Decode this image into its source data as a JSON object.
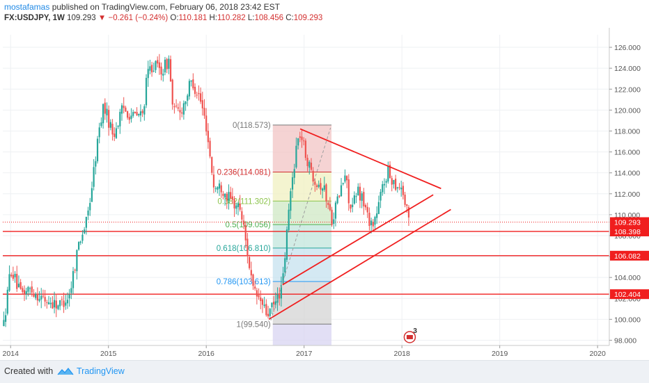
{
  "header": {
    "author": "mostafamas",
    "published": " published on TradingView.com, February 06, 2018 23:42 EST",
    "symbol": "FX:USDJPY, 1W",
    "last": "109.293",
    "arrow": "▼",
    "change": "−0.261 (−0.24%)",
    "o_label": "O:",
    "o_value": "110.181",
    "h_label": "H:",
    "h_value": "110.282",
    "l_label": "L:",
    "l_value": "108.456",
    "c_label": "C:",
    "c_value": "109.293"
  },
  "footer": {
    "created_with": "Created with",
    "brand": "TradingView"
  },
  "colors": {
    "up": "#26a69a",
    "down": "#ef5350",
    "line": "#f01e1e",
    "grid": "#eef0f3",
    "axis_text": "#555555"
  },
  "chart_data": {
    "type": "candlestick",
    "title": "FX:USDJPY, 1W",
    "y_range": [
      97.5,
      127.2
    ],
    "x_range": [
      2013.92,
      2020.12
    ],
    "y_ticks": [
      98,
      100,
      102,
      104,
      106,
      108,
      110,
      112,
      114,
      116,
      118,
      120,
      122,
      124,
      126
    ],
    "y_tick_labels": [
      "98.000",
      "100.000",
      "102.000",
      "104.000",
      "106.000",
      "108.000",
      "110.000",
      "112.000",
      "114.000",
      "116.000",
      "118.000",
      "120.000",
      "122.000",
      "124.000",
      "126.000"
    ],
    "x_ticks": [
      2014,
      2015,
      2016,
      2017,
      2018,
      2019,
      2020
    ],
    "x_tick_labels": [
      "2014",
      "2015",
      "2016",
      "2017",
      "2018",
      "2019",
      "2020"
    ],
    "grid": true,
    "price_path": [
      [
        2013.93,
        99.5
      ],
      [
        2014.0,
        104.9
      ],
      [
        2014.1,
        102.4
      ],
      [
        2014.2,
        102.9
      ],
      [
        2014.35,
        101.8
      ],
      [
        2014.5,
        101.4
      ],
      [
        2014.6,
        102.3
      ],
      [
        2014.7,
        107.5
      ],
      [
        2014.78,
        109.4
      ],
      [
        2014.82,
        112.0
      ],
      [
        2014.9,
        117.8
      ],
      [
        2014.95,
        120.5
      ],
      [
        2015.05,
        117.6
      ],
      [
        2015.15,
        120.2
      ],
      [
        2015.25,
        119.4
      ],
      [
        2015.35,
        119.6
      ],
      [
        2015.4,
        123.5
      ],
      [
        2015.45,
        124.3
      ],
      [
        2015.55,
        123.8
      ],
      [
        2015.62,
        124.8
      ],
      [
        2015.66,
        119.8
      ],
      [
        2015.75,
        120.1
      ],
      [
        2015.85,
        122.8
      ],
      [
        2015.93,
        121.3
      ],
      [
        2016.0,
        118.5
      ],
      [
        2016.08,
        112.5
      ],
      [
        2016.15,
        112.7
      ],
      [
        2016.25,
        111.3
      ],
      [
        2016.35,
        110.6
      ],
      [
        2016.42,
        106.5
      ],
      [
        2016.48,
        102.6
      ],
      [
        2016.55,
        101.8
      ],
      [
        2016.62,
        100.4
      ],
      [
        2016.7,
        101.4
      ],
      [
        2016.78,
        103.3
      ],
      [
        2016.85,
        111.1
      ],
      [
        2016.92,
        116.5
      ],
      [
        2016.96,
        117.8
      ],
      [
        2017.05,
        114.6
      ],
      [
        2017.12,
        113.3
      ],
      [
        2017.2,
        112.6
      ],
      [
        2017.25,
        110.8
      ],
      [
        2017.28,
        109.5
      ],
      [
        2017.35,
        111.6
      ],
      [
        2017.42,
        113.8
      ],
      [
        2017.48,
        110.3
      ],
      [
        2017.55,
        112.3
      ],
      [
        2017.6,
        111.5
      ],
      [
        2017.65,
        109.8
      ],
      [
        2017.7,
        109.1
      ],
      [
        2017.75,
        110.3
      ],
      [
        2017.8,
        112.6
      ],
      [
        2017.85,
        114.1
      ],
      [
        2017.9,
        113.4
      ],
      [
        2017.95,
        112.8
      ],
      [
        2018.0,
        112.7
      ],
      [
        2018.04,
        110.6
      ],
      [
        2018.08,
        109.3
      ]
    ],
    "fibonacci": {
      "levels": [
        {
          "ratio": "0",
          "price": 118.573,
          "label": "0(118.573)",
          "color": "#787878",
          "fill": "#f2c4c4"
        },
        {
          "ratio": "0.236",
          "price": 114.081,
          "label": "0.236(114.081)",
          "color": "#d32f2f",
          "fill": "#f0f0c0"
        },
        {
          "ratio": "0.382",
          "price": 111.302,
          "label": "0.382(111.302)",
          "color": "#8bc34a",
          "fill": "#cfe8c4"
        },
        {
          "ratio": "0.5",
          "price": 109.056,
          "label": "0.5(109.056)",
          "color": "#4caf50",
          "fill": "#c2e6dc"
        },
        {
          "ratio": "0.618",
          "price": 106.81,
          "label": "0.618(106.810)",
          "color": "#26a69a",
          "fill": "#c6e2ef"
        },
        {
          "ratio": "0.786",
          "price": 103.613,
          "label": "0.786(103.613)",
          "color": "#2196f3",
          "fill": "#d4d4d4"
        },
        {
          "ratio": "1",
          "price": 99.54,
          "label": "1(99.540)",
          "color": "#787878",
          "fill": "#d8d4f2"
        }
      ],
      "x_start": 2016.68,
      "x_end": 2017.28,
      "box_bottom": 97.5
    },
    "horizontal_levels": [
      {
        "price": 108.398,
        "label": "108.398"
      },
      {
        "price": 106.082,
        "label": "106.082"
      },
      {
        "price": 102.404,
        "label": "102.404"
      }
    ],
    "current_price": {
      "price": 109.293,
      "label": "109.293"
    },
    "trendlines": [
      {
        "from": [
          2016.96,
          118.2
        ],
        "to": [
          2018.4,
          112.5
        ]
      },
      {
        "from": [
          2016.78,
          103.3
        ],
        "to": [
          2018.32,
          111.9
        ]
      },
      {
        "from": [
          2016.64,
          100.0
        ],
        "to": [
          2018.5,
          110.5
        ]
      }
    ],
    "dashed_line": {
      "from": [
        2016.66,
        99.9
      ],
      "to": [
        2017.27,
        118.3
      ]
    },
    "event_marker": {
      "x": 2018.08,
      "price": 98.3,
      "count": "3"
    }
  }
}
